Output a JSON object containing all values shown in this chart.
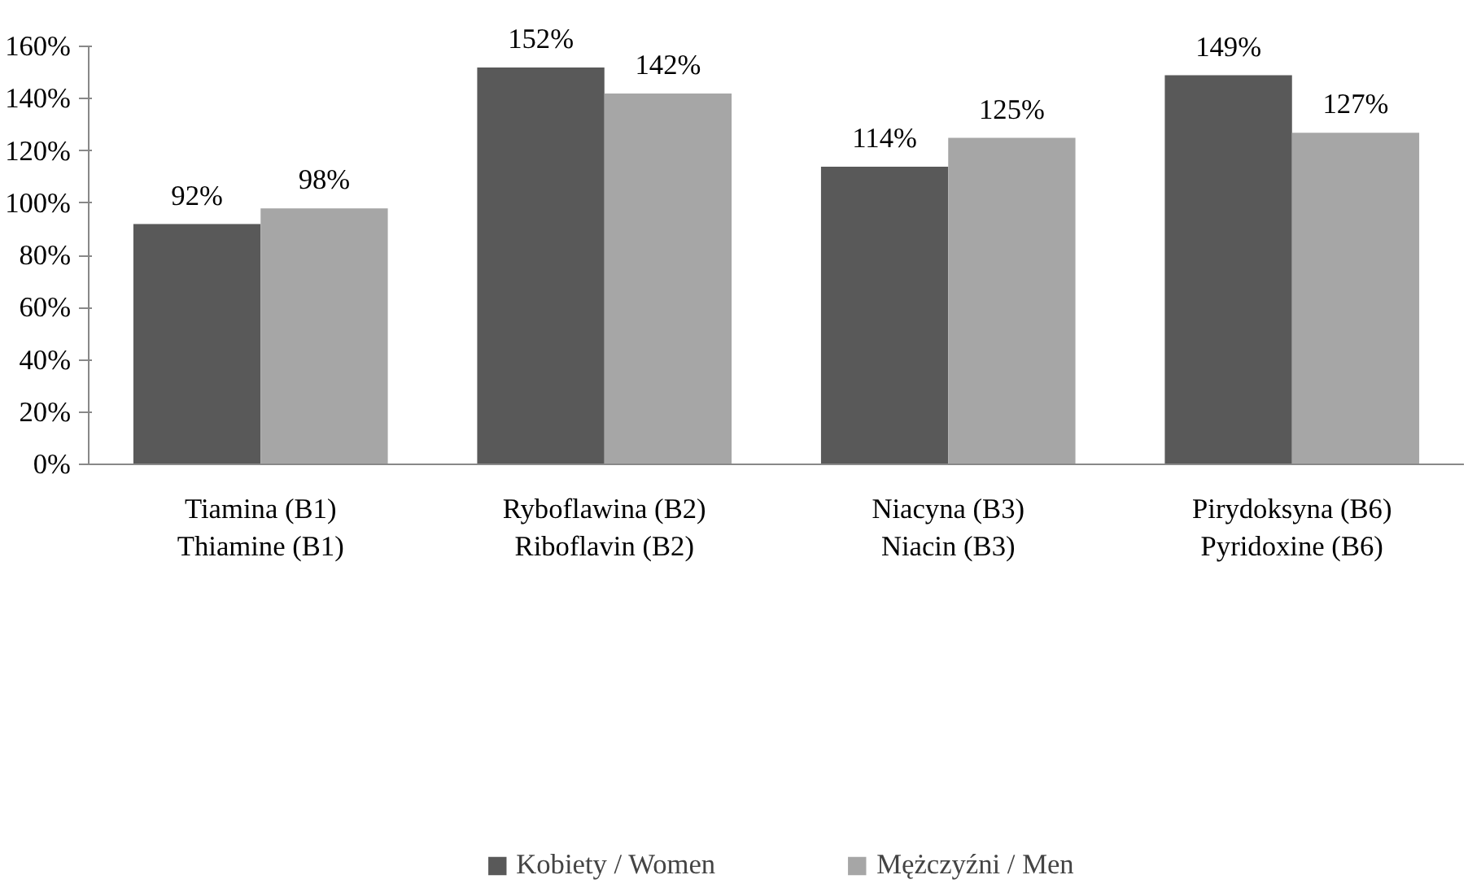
{
  "chart_data": {
    "type": "bar",
    "categories": [
      "Tiamina (B1)\nThiamine (B1)",
      "Ryboflawina (B2)\nRiboflavin (B2)",
      "Niacyna (B3)\nNiacin (B3)",
      "Pirydoksyna (B6)\nPyridoxine (B6)"
    ],
    "series": [
      {
        "name": "Kobiety / Women",
        "color": "#595959",
        "values": [
          92,
          152,
          114,
          149
        ],
        "value_labels": [
          "92%",
          "152%",
          "114%",
          "149%"
        ]
      },
      {
        "name": "Mężczyźni / Men",
        "color": "#a6a6a6",
        "values": [
          98,
          142,
          125,
          127
        ],
        "value_labels": [
          "98%",
          "142%",
          "125%",
          "127%"
        ]
      }
    ],
    "ylim": [
      0,
      160
    ],
    "yticks": [
      {
        "value": 0,
        "label": "0%"
      },
      {
        "value": 20,
        "label": "20%"
      },
      {
        "value": 40,
        "label": "40%"
      },
      {
        "value": 60,
        "label": "60%"
      },
      {
        "value": 80,
        "label": "80%"
      },
      {
        "value": 100,
        "label": "100%"
      },
      {
        "value": 120,
        "label": "120%"
      },
      {
        "value": 140,
        "label": "140%"
      },
      {
        "value": 160,
        "label": "160%"
      }
    ],
    "grid": false,
    "legend": "bottom"
  }
}
